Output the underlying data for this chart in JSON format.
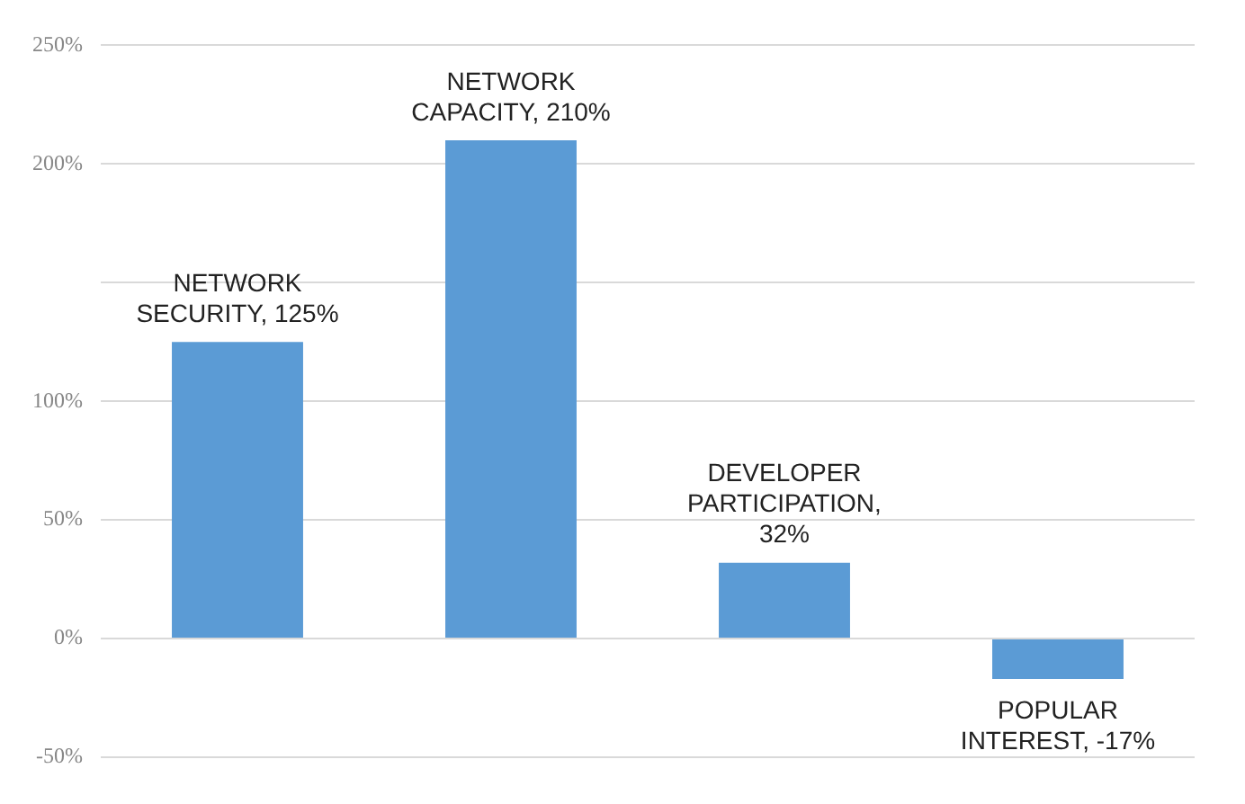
{
  "chart_data": {
    "type": "bar",
    "categories": [
      null,
      null,
      null,
      null
    ],
    "values": [
      125,
      210,
      32,
      -17
    ],
    "color": "#5b9bd5",
    "value_labels": [
      "NETWORK SECURITY, 125%",
      "NETWORK CAPACITY, 210%",
      "DEVELOPER PARTICIPATION, 32%",
      "POPULAR INTEREST, -17%"
    ],
    "ylim": [
      -50,
      250
    ],
    "yticks": [
      {
        "value": -50,
        "label": "-50%"
      },
      {
        "value": 0,
        "label": "0%"
      },
      {
        "value": 50,
        "label": "50%"
      },
      {
        "value": 100,
        "label": "100%"
      },
      {
        "value": 150,
        "label": null
      },
      {
        "value": 200,
        "label": "200%"
      },
      {
        "value": 250,
        "label": "250%"
      }
    ],
    "grid": "y"
  }
}
